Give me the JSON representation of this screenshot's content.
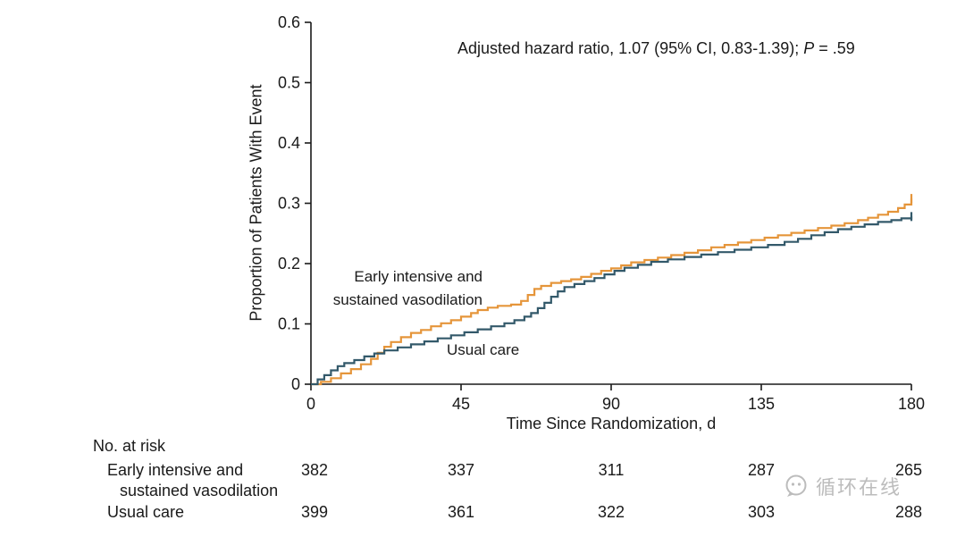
{
  "annotation": {
    "prefix": "Adjusted hazard ratio, 1.07 (95% CI, 0.83-1.39); ",
    "p_label": "P",
    "suffix": " = .59"
  },
  "axes": {
    "y_title": "Proportion of Patients With Event",
    "x_title": "Time Since Randomization, d"
  },
  "series_labels": {
    "intervention_line1": "Early intensive and",
    "intervention_line2": "sustained vasodilation",
    "control": "Usual care"
  },
  "risk_table": {
    "title": "No. at risk",
    "rows": [
      {
        "label_line1": "Early intensive and",
        "label_line2": "sustained vasodilation",
        "counts": [
          "382",
          "337",
          "311",
          "287",
          "265"
        ]
      },
      {
        "label_line1": "Usual care",
        "label_line2": "",
        "counts": [
          "399",
          "361",
          "322",
          "303",
          "288"
        ]
      }
    ]
  },
  "watermark": {
    "text": "循环在线"
  },
  "chart_data": {
    "type": "line",
    "subtype": "kaplan-meier-step",
    "title": "Adjusted hazard ratio, 1.07 (95% CI, 0.83-1.39); P = .59",
    "xlabel": "Time Since Randomization, d",
    "ylabel": "Proportion of Patients With Event",
    "xlim": [
      0,
      180
    ],
    "ylim": [
      0,
      0.6
    ],
    "xticks": [
      0,
      45,
      90,
      135,
      180
    ],
    "xtick_labels": [
      "0",
      "45",
      "90",
      "135",
      "180"
    ],
    "yticks": [
      0,
      0.1,
      0.2,
      0.3,
      0.4,
      0.5,
      0.6
    ],
    "ytick_labels": [
      "0",
      "0.1",
      "0.2",
      "0.3",
      "0.4",
      "0.5",
      "0.6"
    ],
    "grid": false,
    "legend_position": "inline-labels",
    "axis_color": "#1a1a1a",
    "series": [
      {
        "id": "intervention",
        "name": "Early intensive and sustained vasodilation",
        "color": "#E5953A",
        "step": true,
        "end_tick": true,
        "points": [
          [
            0,
            0
          ],
          [
            3,
            0.004
          ],
          [
            6,
            0.01
          ],
          [
            9,
            0.018
          ],
          [
            12,
            0.025
          ],
          [
            15,
            0.033
          ],
          [
            18,
            0.042
          ],
          [
            20,
            0.052
          ],
          [
            22,
            0.062
          ],
          [
            24,
            0.07
          ],
          [
            27,
            0.078
          ],
          [
            30,
            0.085
          ],
          [
            33,
            0.09
          ],
          [
            36,
            0.096
          ],
          [
            39,
            0.101
          ],
          [
            42,
            0.106
          ],
          [
            45,
            0.112
          ],
          [
            48,
            0.118
          ],
          [
            50,
            0.123
          ],
          [
            53,
            0.127
          ],
          [
            56,
            0.13
          ],
          [
            60,
            0.132
          ],
          [
            63,
            0.138
          ],
          [
            65,
            0.148
          ],
          [
            67,
            0.158
          ],
          [
            69,
            0.163
          ],
          [
            72,
            0.168
          ],
          [
            75,
            0.171
          ],
          [
            78,
            0.174
          ],
          [
            81,
            0.178
          ],
          [
            84,
            0.183
          ],
          [
            87,
            0.188
          ],
          [
            90,
            0.192
          ],
          [
            93,
            0.197
          ],
          [
            96,
            0.202
          ],
          [
            100,
            0.206
          ],
          [
            104,
            0.21
          ],
          [
            108,
            0.214
          ],
          [
            112,
            0.218
          ],
          [
            116,
            0.222
          ],
          [
            120,
            0.227
          ],
          [
            124,
            0.231
          ],
          [
            128,
            0.235
          ],
          [
            132,
            0.239
          ],
          [
            136,
            0.243
          ],
          [
            140,
            0.247
          ],
          [
            144,
            0.251
          ],
          [
            148,
            0.255
          ],
          [
            152,
            0.259
          ],
          [
            156,
            0.263
          ],
          [
            160,
            0.267
          ],
          [
            164,
            0.272
          ],
          [
            167,
            0.276
          ],
          [
            170,
            0.281
          ],
          [
            173,
            0.286
          ],
          [
            176,
            0.292
          ],
          [
            178,
            0.298
          ],
          [
            180,
            0.308
          ]
        ]
      },
      {
        "id": "control",
        "name": "Usual care",
        "color": "#33596A",
        "step": true,
        "end_tick": true,
        "points": [
          [
            0,
            0
          ],
          [
            2,
            0.008
          ],
          [
            4,
            0.015
          ],
          [
            6,
            0.023
          ],
          [
            8,
            0.03
          ],
          [
            10,
            0.035
          ],
          [
            13,
            0.04
          ],
          [
            16,
            0.046
          ],
          [
            19,
            0.051
          ],
          [
            22,
            0.056
          ],
          [
            26,
            0.061
          ],
          [
            30,
            0.066
          ],
          [
            34,
            0.071
          ],
          [
            38,
            0.076
          ],
          [
            42,
            0.081
          ],
          [
            46,
            0.086
          ],
          [
            50,
            0.091
          ],
          [
            54,
            0.096
          ],
          [
            58,
            0.101
          ],
          [
            61,
            0.106
          ],
          [
            64,
            0.112
          ],
          [
            66,
            0.118
          ],
          [
            68,
            0.126
          ],
          [
            70,
            0.135
          ],
          [
            72,
            0.145
          ],
          [
            74,
            0.154
          ],
          [
            76,
            0.161
          ],
          [
            79,
            0.166
          ],
          [
            82,
            0.171
          ],
          [
            85,
            0.176
          ],
          [
            88,
            0.182
          ],
          [
            91,
            0.188
          ],
          [
            94,
            0.193
          ],
          [
            98,
            0.198
          ],
          [
            102,
            0.203
          ],
          [
            107,
            0.207
          ],
          [
            112,
            0.211
          ],
          [
            117,
            0.215
          ],
          [
            122,
            0.219
          ],
          [
            127,
            0.223
          ],
          [
            132,
            0.227
          ],
          [
            137,
            0.231
          ],
          [
            142,
            0.236
          ],
          [
            146,
            0.241
          ],
          [
            150,
            0.247
          ],
          [
            154,
            0.252
          ],
          [
            158,
            0.257
          ],
          [
            162,
            0.261
          ],
          [
            166,
            0.265
          ],
          [
            170,
            0.269
          ],
          [
            174,
            0.272
          ],
          [
            177,
            0.275
          ],
          [
            180,
            0.278
          ]
        ]
      }
    ]
  }
}
